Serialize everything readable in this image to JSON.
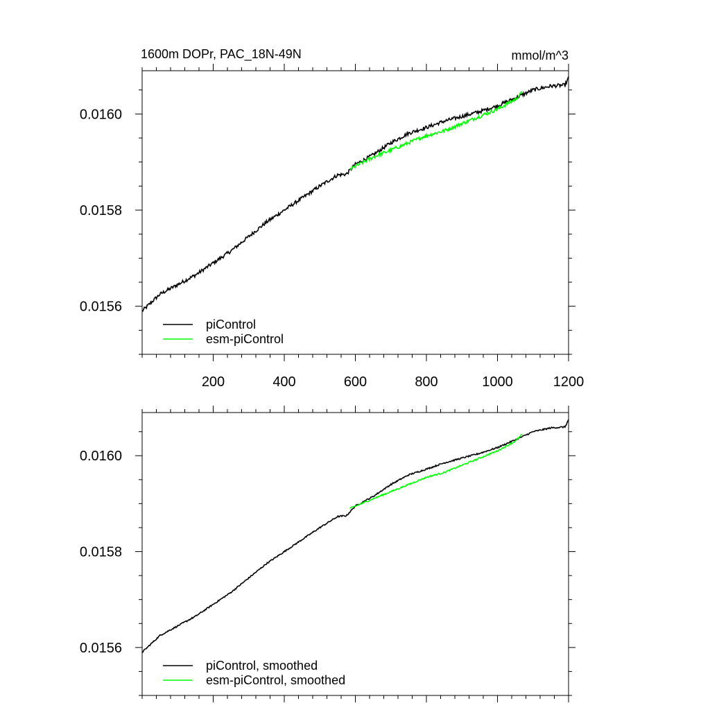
{
  "header": {
    "title": "1600m DOPr, PAC_18N-49N",
    "units": "mmol/m^3"
  },
  "colors": {
    "piControl": "#000000",
    "esm_piControl": "#00ff00"
  },
  "chart_data": [
    {
      "type": "line",
      "panel": "top",
      "xlim": [
        0,
        1200
      ],
      "ylim": [
        0.0155,
        0.01609
      ],
      "xticks": [
        200,
        400,
        600,
        800,
        1000,
        1200
      ],
      "xtick_labels": [
        "200",
        "400",
        "600",
        "800",
        "1000",
        "1200"
      ],
      "yticks": [
        0.0156,
        0.0158,
        0.016
      ],
      "ytick_labels": [
        "0.0156",
        "0.0158",
        "0.0160"
      ],
      "legend": [
        "piControl",
        "esm-piControl"
      ],
      "legend_position": "bottom-left",
      "series": [
        {
          "name": "piControl",
          "x": [
            0,
            50,
            100,
            150,
            200,
            250,
            300,
            350,
            400,
            450,
            500,
            550,
            575,
            600,
            650,
            700,
            750,
            800,
            850,
            900,
            950,
            1000,
            1050,
            1100,
            1150,
            1190,
            1200
          ],
          "y": [
            0.01559,
            0.015625,
            0.015645,
            0.015665,
            0.01569,
            0.015715,
            0.015745,
            0.015775,
            0.0158,
            0.015825,
            0.01585,
            0.015873,
            0.015875,
            0.015895,
            0.015915,
            0.01594,
            0.01596,
            0.015972,
            0.015985,
            0.015995,
            0.016005,
            0.016017,
            0.016033,
            0.01605,
            0.016058,
            0.01606,
            0.016075
          ]
        },
        {
          "name": "esm-piControl",
          "x": [
            585,
            650,
            700,
            750,
            800,
            850,
            900,
            950,
            1000,
            1050,
            1070
          ],
          "y": [
            0.015885,
            0.01591,
            0.015925,
            0.01594,
            0.015955,
            0.015965,
            0.01598,
            0.015995,
            0.01601,
            0.01603,
            0.016045
          ]
        }
      ]
    },
    {
      "type": "line",
      "panel": "bottom",
      "xlim": [
        0,
        1200
      ],
      "ylim": [
        0.0155,
        0.01609
      ],
      "xticks": [
        200,
        400,
        600,
        800,
        1000,
        1200
      ],
      "yticks": [
        0.0156,
        0.0158,
        0.016
      ],
      "ytick_labels": [
        "0.0156",
        "0.0158",
        "0.0160"
      ],
      "legend": [
        "piControl, smoothed",
        "esm-piControl, smoothed"
      ],
      "legend_position": "bottom-left",
      "series": [
        {
          "name": "piControl, smoothed",
          "x": [
            0,
            50,
            100,
            150,
            200,
            250,
            300,
            350,
            400,
            450,
            500,
            550,
            575,
            600,
            650,
            700,
            750,
            800,
            850,
            900,
            950,
            1000,
            1050,
            1100,
            1150,
            1190,
            1200
          ],
          "y": [
            0.01559,
            0.015625,
            0.015645,
            0.015665,
            0.01569,
            0.015715,
            0.015745,
            0.015775,
            0.0158,
            0.015825,
            0.01585,
            0.015873,
            0.015875,
            0.015895,
            0.015915,
            0.01594,
            0.01596,
            0.015972,
            0.015985,
            0.015995,
            0.016005,
            0.016017,
            0.016033,
            0.01605,
            0.016058,
            0.01606,
            0.016075
          ]
        },
        {
          "name": "esm-piControl, smoothed",
          "x": [
            585,
            650,
            700,
            750,
            800,
            850,
            900,
            950,
            1000,
            1050,
            1070
          ],
          "y": [
            0.01589,
            0.01591,
            0.015925,
            0.01594,
            0.015955,
            0.015965,
            0.01598,
            0.015995,
            0.01601,
            0.01603,
            0.016045
          ]
        }
      ]
    }
  ]
}
